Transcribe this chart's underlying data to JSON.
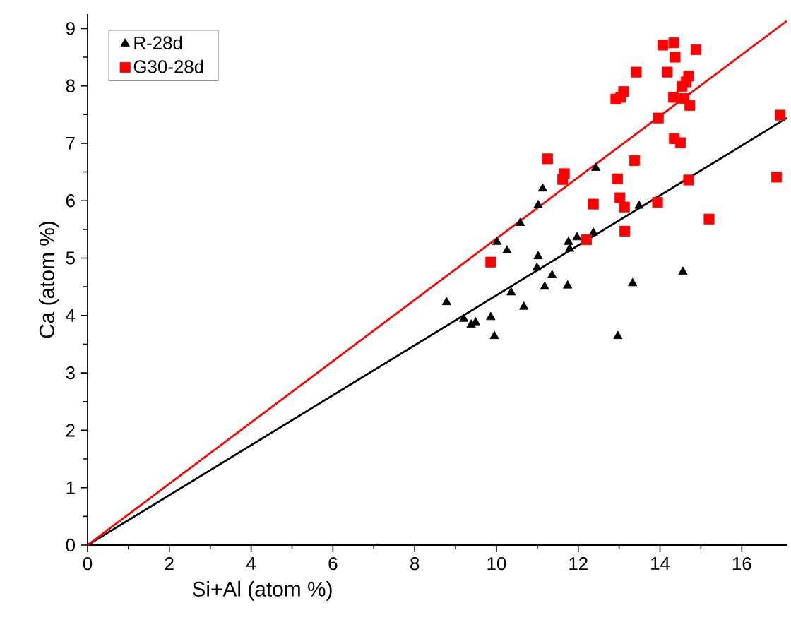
{
  "chart_data": {
    "type": "scatter",
    "xlabel": "Si+Al (atom %)",
    "ylabel": "Ca (atom %)",
    "xlim": [
      0,
      17.1
    ],
    "ylim": [
      0,
      9.25
    ],
    "xticks": [
      0,
      2,
      4,
      6,
      8,
      10,
      12,
      14,
      16
    ],
    "yticks": [
      0,
      1,
      2,
      3,
      4,
      5,
      6,
      7,
      8,
      9
    ],
    "legend": "top left",
    "grid": false,
    "series": [
      {
        "name": "R-28d",
        "color": "#000000",
        "marker": "triangle",
        "x": [
          8.78,
          9.2,
          9.38,
          9.49,
          9.86,
          9.95,
          10.36,
          10.67,
          10.99,
          11.02,
          11.18,
          11.36,
          11.74,
          11.76,
          11.79,
          11.97,
          12.37,
          12.97,
          13.33,
          14.56,
          10.58,
          10.01,
          10.26,
          11.13,
          11.02,
          12.43,
          13.49
        ],
        "values": [
          4.23,
          3.94,
          3.84,
          3.88,
          3.97,
          3.64,
          4.4,
          4.15,
          4.83,
          5.03,
          4.5,
          4.7,
          4.52,
          5.28,
          5.16,
          5.36,
          5.44,
          3.64,
          4.56,
          4.76,
          5.61,
          5.28,
          5.13,
          6.21,
          5.92,
          6.57,
          5.91
        ]
      },
      {
        "name": "G30-28d",
        "color": "#ff0000",
        "marker": "square",
        "x": [
          9.86,
          11.25,
          11.66,
          11.62,
          12.37,
          12.96,
          13.38,
          13.02,
          13.13,
          13.14,
          12.2,
          13.94,
          14.7,
          15.2,
          16.85,
          16.94,
          12.92,
          13.11,
          13.04,
          13.42,
          13.96,
          14.07,
          14.34,
          14.37,
          14.18,
          14.88,
          14.35,
          14.5,
          14.54,
          14.7,
          14.73,
          14.33,
          14.59,
          14.64
        ],
        "values": [
          4.93,
          6.73,
          6.47,
          6.37,
          5.94,
          6.38,
          6.7,
          6.05,
          5.89,
          5.47,
          5.32,
          5.97,
          6.36,
          5.68,
          6.41,
          7.49,
          7.77,
          7.9,
          7.8,
          8.24,
          7.44,
          8.71,
          8.75,
          8.5,
          8.24,
          8.63,
          7.08,
          7.01,
          7.99,
          8.17,
          7.66,
          7.8,
          7.78,
          8.07
        ]
      },
      {
        "type": "line",
        "color": "#000000",
        "x": [
          0,
          17.1
        ],
        "values": [
          0,
          7.44
        ]
      },
      {
        "type": "line",
        "color": "#ff0000",
        "x": [
          0,
          17.1
        ],
        "values": [
          0,
          9.13
        ]
      }
    ]
  }
}
